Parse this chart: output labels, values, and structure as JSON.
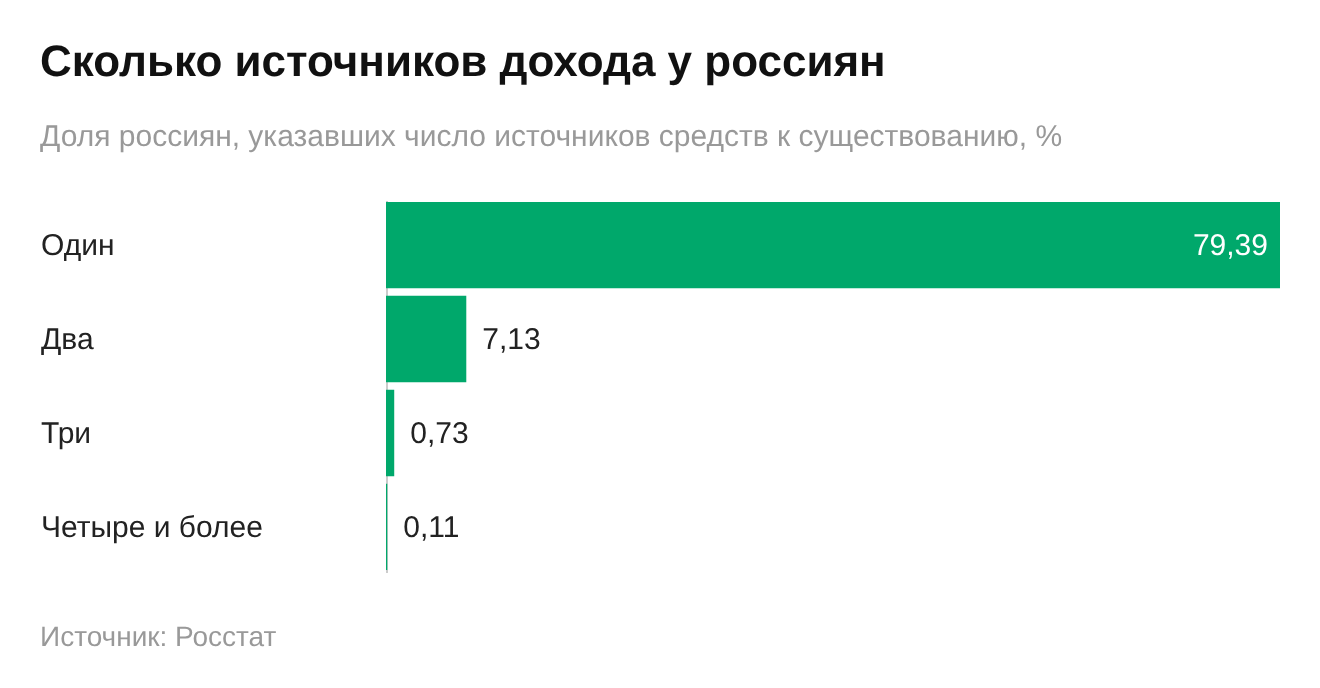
{
  "chart_data": {
    "type": "bar",
    "orientation": "horizontal",
    "title": "Сколько источников дохода у россиян",
    "subtitle": "Доля россиян, указавших число источников средств к существованию, %",
    "categories": [
      "Один",
      "Два",
      "Три",
      "Четыре и более"
    ],
    "values": [
      79.39,
      7.13,
      0.73,
      0.11
    ],
    "value_labels": [
      "79,39",
      "7,13",
      "0,73",
      "0,11"
    ],
    "color": "#00a86b",
    "annotations": [
      "Источник: Росстат"
    ]
  }
}
